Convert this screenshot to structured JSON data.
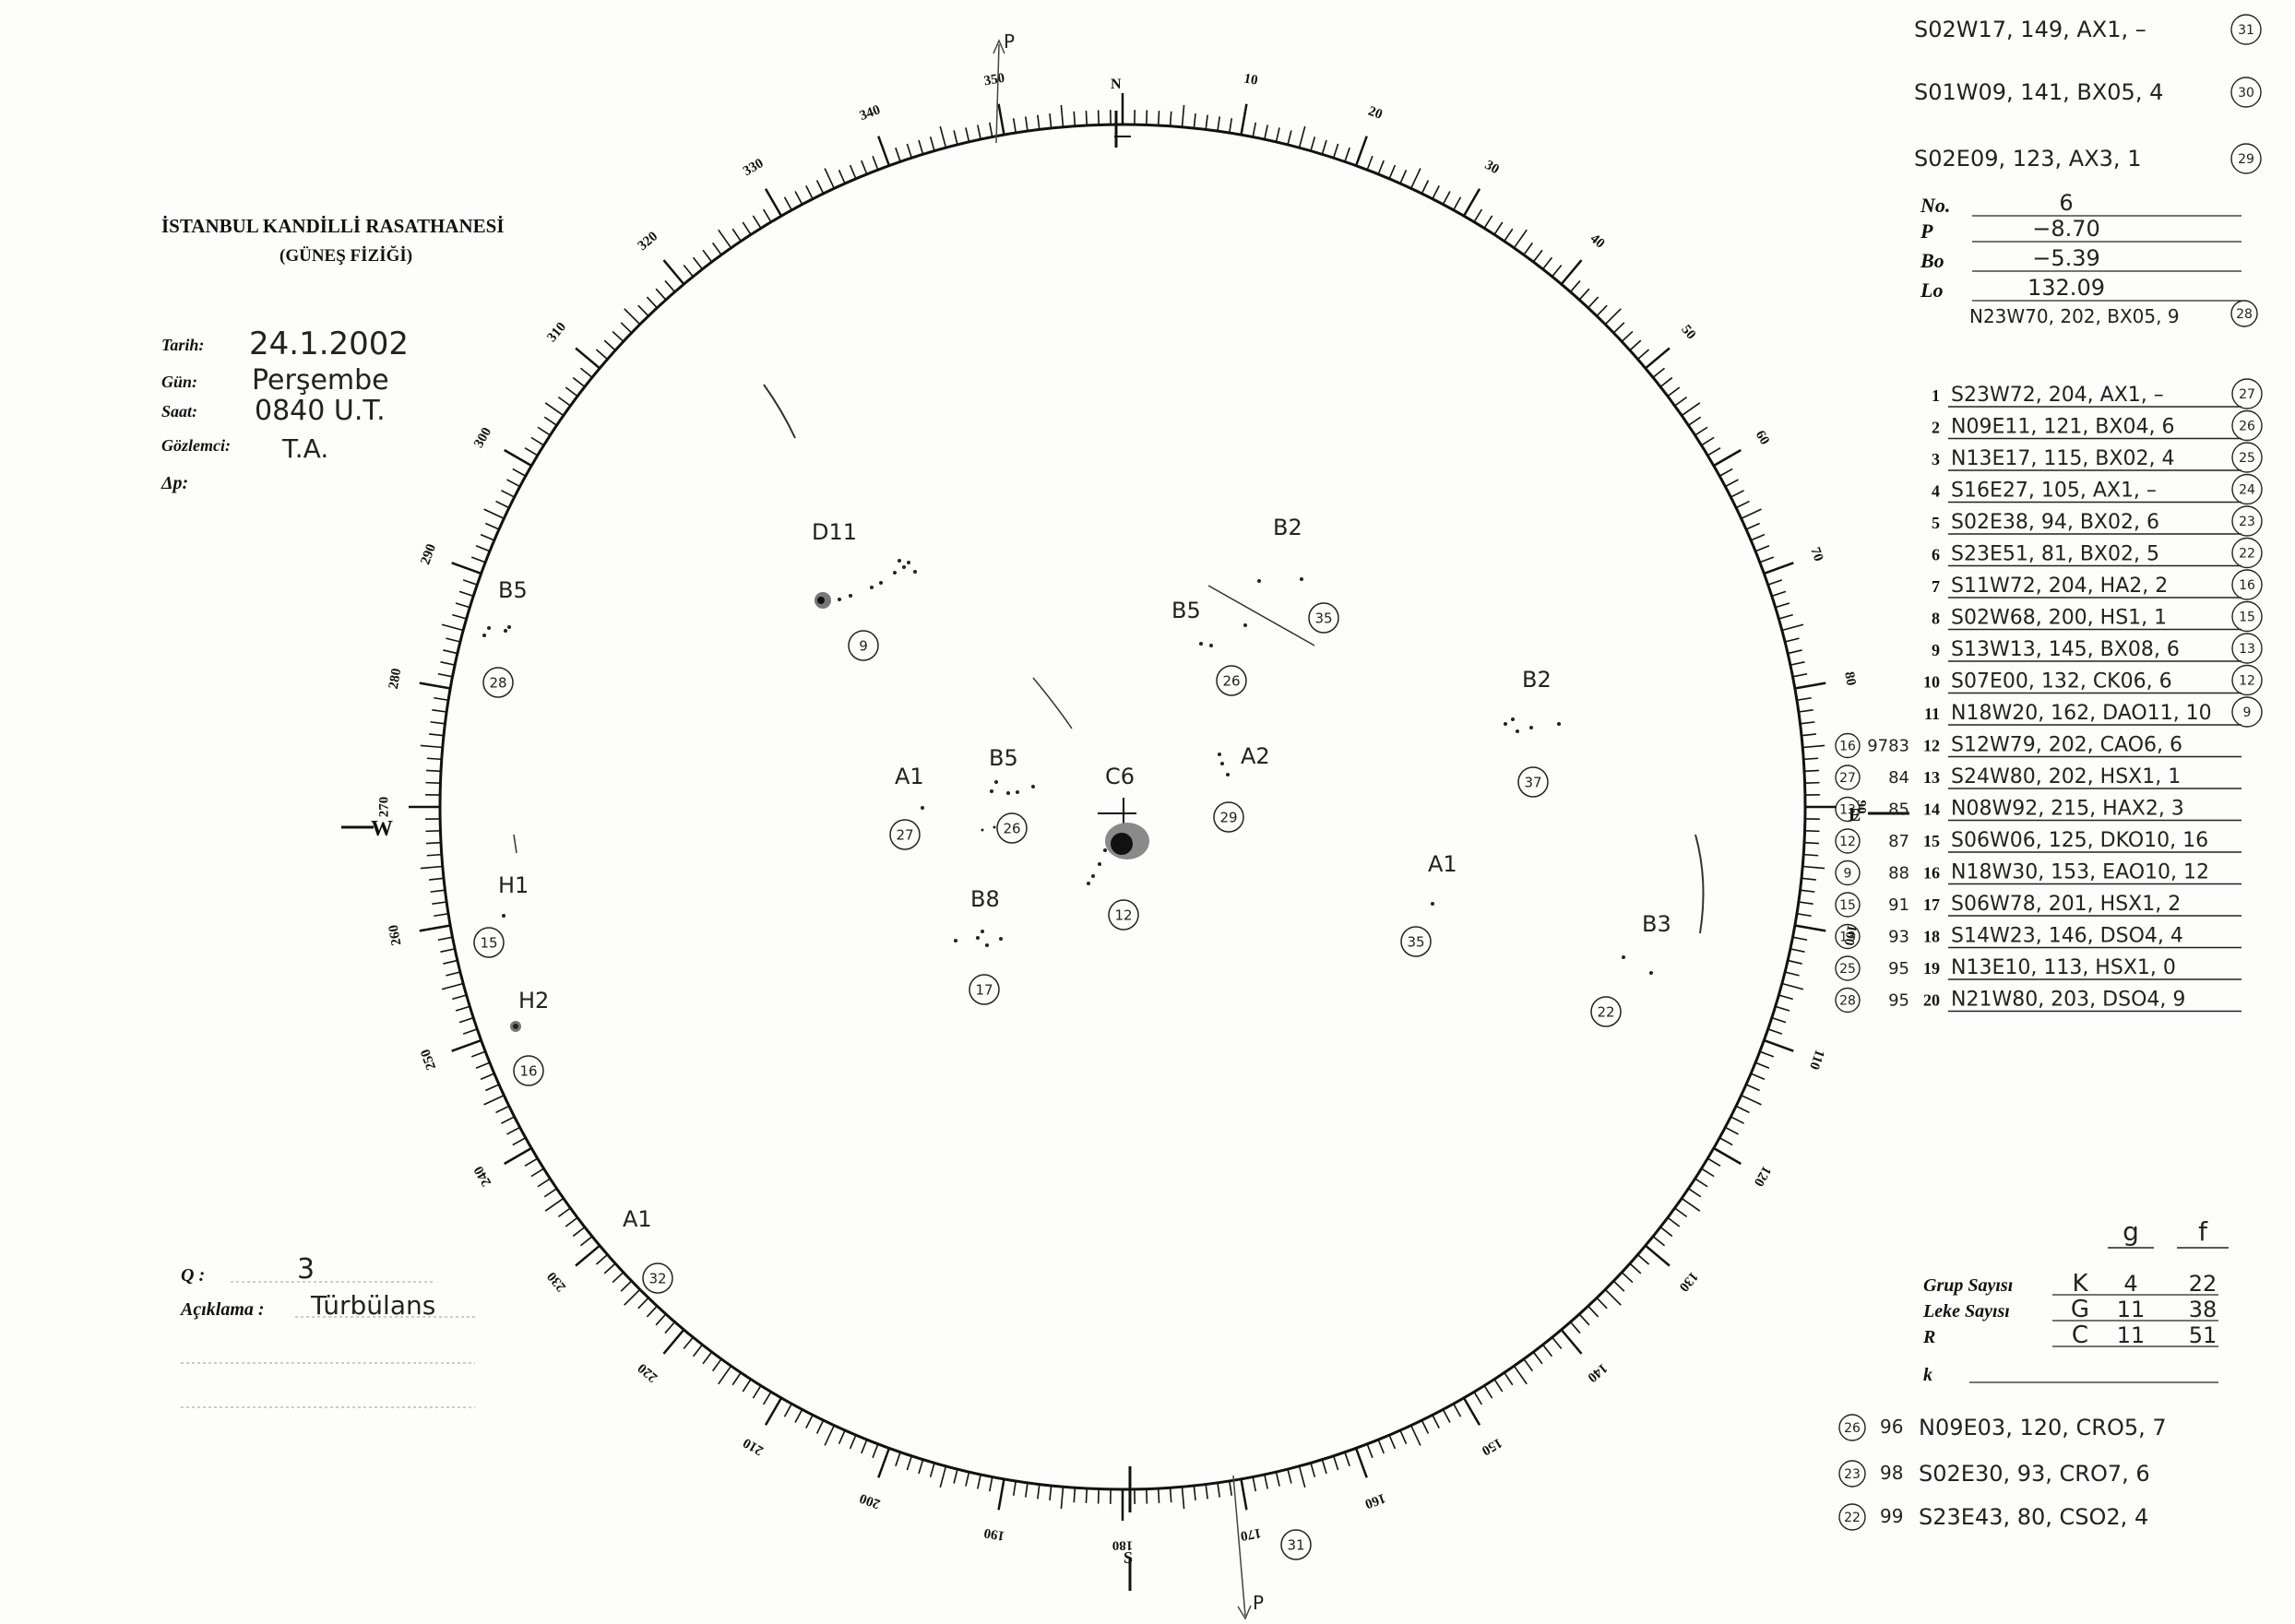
{
  "header": {
    "institution": "İSTANBUL KANDİLLİ RASATHANESİ",
    "department": "(GÜNEŞ FİZİĞİ)"
  },
  "observation": {
    "date_label": "Tarih:",
    "date_value": "24.1.2002",
    "day_label": "Gün:",
    "day_value": "Perşembe",
    "time_label": "Saat:",
    "time_value": "0840 U.T.",
    "observer_label": "Gözlemci:",
    "observer_value": "T.A.",
    "delta_p_label": "Δp:"
  },
  "quality": {
    "q_label": "Q :",
    "q_value": "3",
    "note_label": "Açıklama :",
    "note_value": "Türbülans"
  },
  "disk": {
    "north_label": "N",
    "south_label": "S",
    "east_label": "E",
    "west_label": "W",
    "pole_label": "P",
    "degree_labels": [
      "10",
      "20",
      "30",
      "40",
      "50",
      "60",
      "70",
      "80",
      "90",
      "100",
      "110",
      "120",
      "130",
      "140",
      "150",
      "160",
      "170",
      "180",
      "190",
      "200",
      "210",
      "220",
      "230",
      "240",
      "250",
      "260",
      "270",
      "280",
      "290",
      "300",
      "310",
      "320",
      "330",
      "340",
      "350"
    ],
    "annotations": [
      {
        "class": "D11",
        "circle": "9"
      },
      {
        "class": "B5",
        "circle": "28"
      },
      {
        "class": "B5",
        "circle": "26"
      },
      {
        "class": "B2",
        "circle": "35"
      },
      {
        "class": "B5",
        "circle": "26"
      },
      {
        "class": "A1",
        "circle": "27"
      },
      {
        "class": "C6",
        "circle": "12"
      },
      {
        "class": "A2",
        "circle": "29"
      },
      {
        "class": "B2",
        "circle": "37"
      },
      {
        "class": "B8",
        "circle": "17"
      },
      {
        "class": "A1",
        "circle": "35"
      },
      {
        "class": "B3",
        "circle": "22"
      },
      {
        "class": "H1",
        "circle": "15"
      },
      {
        "class": "H2",
        "circle": "16"
      },
      {
        "class": "A1",
        "circle": "32"
      },
      {
        "class": "",
        "circle": "31"
      }
    ]
  },
  "right_panel": {
    "top_notes": [
      {
        "text": "S02W17, 149, AX1, –",
        "circle": "31"
      },
      {
        "text": "S01W09, 141, BX05, 4",
        "circle": "30"
      },
      {
        "text": "S02E09, 123, AX3, 1",
        "circle": "29"
      }
    ],
    "params": [
      {
        "label": "No.",
        "value": "6"
      },
      {
        "label": "P",
        "value": "−8.70"
      },
      {
        "label": "Bo",
        "value": "−5.39"
      },
      {
        "label": "Lo",
        "value": "132.09"
      }
    ],
    "extra_line": {
      "text": "N23W70, 202, BX05, 9",
      "circle": "28"
    },
    "groups": [
      {
        "n": "1",
        "pre_circle": "",
        "pre_num": "",
        "text": "S23W72, 204, AX1, –",
        "circle": "27"
      },
      {
        "n": "2",
        "pre_circle": "",
        "pre_num": "",
        "text": "N09E11, 121, BX04, 6",
        "circle": "26"
      },
      {
        "n": "3",
        "pre_circle": "",
        "pre_num": "",
        "text": "N13E17, 115, BX02, 4",
        "circle": "25"
      },
      {
        "n": "4",
        "pre_circle": "",
        "pre_num": "",
        "text": "S16E27, 105, AX1, –",
        "circle": "24"
      },
      {
        "n": "5",
        "pre_circle": "",
        "pre_num": "",
        "text": "S02E38, 94, BX02, 6",
        "circle": "23"
      },
      {
        "n": "6",
        "pre_circle": "",
        "pre_num": "",
        "text": "S23E51, 81, BX02, 5",
        "circle": "22"
      },
      {
        "n": "7",
        "pre_circle": "",
        "pre_num": "",
        "text": "S11W72, 204, HA2, 2",
        "circle": "16"
      },
      {
        "n": "8",
        "pre_circle": "",
        "pre_num": "",
        "text": "S02W68, 200, HS1, 1",
        "circle": "15"
      },
      {
        "n": "9",
        "pre_circle": "",
        "pre_num": "",
        "text": "S13W13, 145, BX08, 6",
        "circle": "13"
      },
      {
        "n": "10",
        "pre_circle": "",
        "pre_num": "",
        "text": "S07E00, 132, CK06, 6",
        "circle": "12"
      },
      {
        "n": "11",
        "pre_circle": "",
        "pre_num": "",
        "text": "N18W20, 162, DAO11, 10",
        "circle": "9"
      },
      {
        "n": "12",
        "pre_circle": "16",
        "pre_num": "9783",
        "text": "S12W79, 202, CAO6, 6",
        "circle": ""
      },
      {
        "n": "13",
        "pre_circle": "27",
        "pre_num": "84",
        "text": "S24W80, 202, HSX1, 1",
        "circle": ""
      },
      {
        "n": "14",
        "pre_circle": "13",
        "pre_num": "85",
        "text": "N08W92, 215, HAX2, 3",
        "circle": ""
      },
      {
        "n": "15",
        "pre_circle": "12",
        "pre_num": "87",
        "text": "S06W06, 125, DKO10, 16",
        "circle": ""
      },
      {
        "n": "16",
        "pre_circle": "9",
        "pre_num": "88",
        "text": "N18W30, 153, EAO10, 12",
        "circle": ""
      },
      {
        "n": "17",
        "pre_circle": "15",
        "pre_num": "91",
        "text": "S06W78, 201, HSX1, 2",
        "circle": ""
      },
      {
        "n": "18",
        "pre_circle": "13",
        "pre_num": "93",
        "text": "S14W23, 146, DSO4, 4",
        "circle": ""
      },
      {
        "n": "19",
        "pre_circle": "25",
        "pre_num": "95",
        "text": "N13E10, 113, HSX1, 0",
        "circle": ""
      },
      {
        "n": "20",
        "pre_circle": "28",
        "pre_num": "95",
        "text": "N21W80, 203, DSO4, 9",
        "circle": ""
      }
    ],
    "counts": {
      "col_g": "g",
      "col_f": "f",
      "group_label": "Grup Sayısı",
      "spot_label": "Leke Sayısı",
      "r_label": "R",
      "k_label": "k",
      "rows": [
        {
          "letter": "K",
          "g": "4",
          "f": "22"
        },
        {
          "letter": "G",
          "g": "11",
          "f": "38"
        },
        {
          "letter": "C",
          "g": "11",
          "f": "51"
        }
      ]
    },
    "bottom_notes": [
      {
        "circle": "26",
        "num": "96",
        "text": "N09E03, 120, CRO5, 7"
      },
      {
        "circle": "23",
        "num": "98",
        "text": "S02E30, 93, CRO7, 6"
      },
      {
        "circle": "22",
        "num": "99",
        "text": "S23E43, 80, CSO2, 4"
      }
    ]
  }
}
